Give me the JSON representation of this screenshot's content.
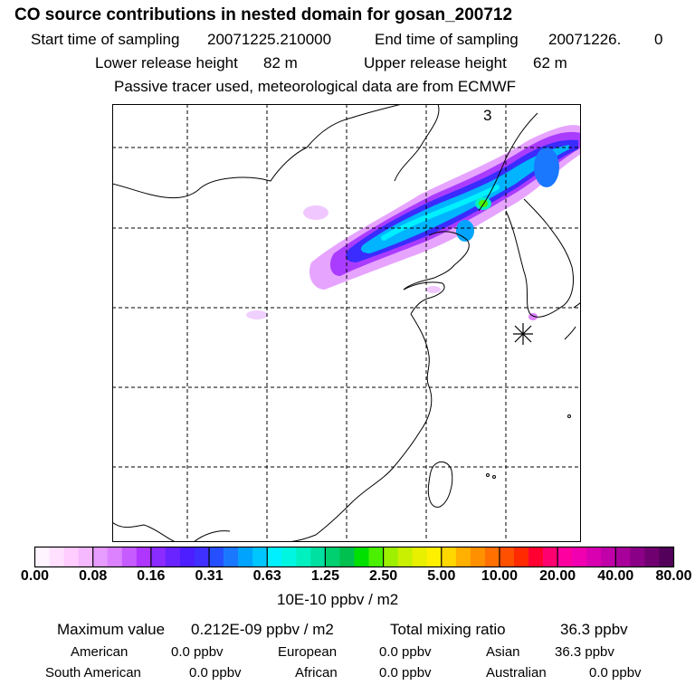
{
  "title": "CO  source contributions in nested domain for gosan_200712",
  "sampling": {
    "start_label": "Start time of sampling",
    "start_value": "20071225.210000",
    "end_label": "End time of sampling",
    "end_value": "20071226.",
    "end_extra": "0"
  },
  "release": {
    "lower_label": "Lower release height",
    "lower_value": "82 m",
    "upper_label": "Upper release height",
    "upper_value": "62 m"
  },
  "note": "Passive tracer used, meteorological data are from ECMWF",
  "map": {
    "panel_number": "3",
    "receptor_marker": "asterisk-icon",
    "colors": {
      "coast": "#000000",
      "grid": "#000000"
    }
  },
  "colorbar": {
    "ticks": [
      "0.00",
      "0.08",
      "0.16",
      "0.31",
      "0.63",
      "1.25",
      "2.50",
      "5.00",
      "10.00",
      "20.00",
      "40.00",
      "80.00"
    ],
    "unit": "10E-10 ppbv / m2",
    "colors": [
      "#fff4ff",
      "#ffe1ff",
      "#ffcdff",
      "#f5b9ff",
      "#e79cff",
      "#dc82ff",
      "#c65cff",
      "#ae36ff",
      "#8a2bff",
      "#6a24ff",
      "#4d1eff",
      "#3f30ff",
      "#2650ff",
      "#1a78ff",
      "#00a4ff",
      "#00c6ff",
      "#00f0ff",
      "#00f6e0",
      "#00f0c0",
      "#00e0a0",
      "#00d070",
      "#00c050",
      "#00e000",
      "#4af000",
      "#9cf000",
      "#c8f000",
      "#e8f000",
      "#fff000",
      "#ffd800",
      "#ffb000",
      "#ff9000",
      "#ff7000",
      "#ff5000",
      "#ff2a00",
      "#ff0030",
      "#ff0070",
      "#ff00a0",
      "#f000b0",
      "#d800b0",
      "#c000a8",
      "#a8009a",
      "#8a0086",
      "#700070",
      "#52005a"
    ]
  },
  "stats": {
    "max_label": "Maximum value",
    "max_value": "0.212E-09 ppbv / m2",
    "total_label": "Total mixing ratio",
    "total_value": "36.3 ppbv"
  },
  "regions": [
    {
      "name": "American",
      "value": "0.0 ppbv"
    },
    {
      "name": "European",
      "value": "0.0 ppbv"
    },
    {
      "name": "Asian",
      "value": "36.3 ppbv"
    },
    {
      "name": "South American",
      "value": "0.0 ppbv"
    },
    {
      "name": "African",
      "value": "0.0 ppbv"
    },
    {
      "name": "Australian",
      "value": "0.0 ppbv"
    }
  ]
}
